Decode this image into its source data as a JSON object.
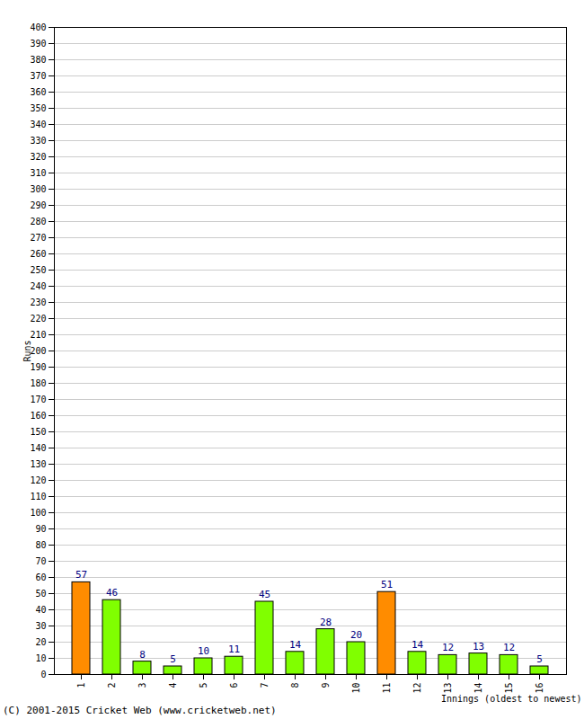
{
  "chart_data": {
    "type": "bar",
    "categories": [
      "1",
      "2",
      "3",
      "4",
      "5",
      "6",
      "7",
      "8",
      "9",
      "10",
      "11",
      "12",
      "13",
      "14",
      "15",
      "16"
    ],
    "values": [
      57,
      46,
      8,
      5,
      10,
      11,
      45,
      14,
      28,
      20,
      51,
      14,
      12,
      13,
      12,
      5
    ],
    "colors": [
      "#ff8c00",
      "#80ff00",
      "#80ff00",
      "#80ff00",
      "#80ff00",
      "#80ff00",
      "#80ff00",
      "#80ff00",
      "#80ff00",
      "#80ff00",
      "#ff8c00",
      "#80ff00",
      "#80ff00",
      "#80ff00",
      "#80ff00",
      "#80ff00"
    ],
    "x_label": "Innings (oldest to newest)",
    "y_label": "Runs",
    "ylim": [
      0,
      400
    ],
    "yticks": [
      0,
      10,
      20,
      30,
      40,
      50,
      60,
      70,
      80,
      90,
      100,
      110,
      120,
      130,
      140,
      150,
      160,
      170,
      180,
      190,
      200,
      210,
      220,
      230,
      240,
      250,
      260,
      270,
      280,
      290,
      300,
      310,
      320,
      330,
      340,
      350,
      360,
      370,
      380,
      390,
      400
    ],
    "grid": true,
    "data_labels": true,
    "caption": "(C) 2001-2015 Cricket Web (www.cricketweb.net)"
  }
}
